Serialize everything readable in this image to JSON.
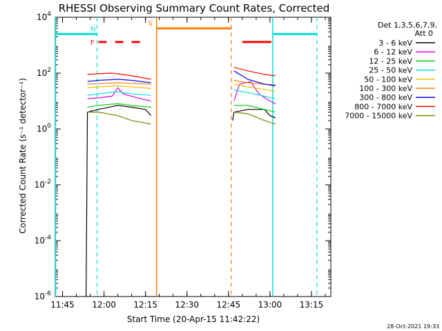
{
  "chart_data": {
    "type": "line",
    "title": "RHESSI Observing Summary Count Rates, Corrected",
    "xlabel": "Start Time (20-Apr-15 11:42:22)",
    "ylabel": "Corrected Count Rate (s⁻¹ detector⁻¹)",
    "timestamp": "28-Oct-2021 19:33",
    "y_scale": "log",
    "ylim": [
      1e-06,
      10000.0
    ],
    "xlim": [
      "11:42:22",
      "13:22"
    ],
    "x_ticks": [
      "11:45",
      "12:00",
      "12:15",
      "12:30",
      "12:45",
      "13:00",
      "13:15"
    ],
    "y_ticks": [
      {
        "mant": "10",
        "exp": "-6"
      },
      {
        "mant": "10",
        "exp": "-4"
      },
      {
        "mant": "10",
        "exp": "-2"
      },
      {
        "mant": "10",
        "exp": "0"
      },
      {
        "mant": "10",
        "exp": "2"
      },
      {
        "mant": "10",
        "exp": "4"
      }
    ],
    "legend_title": "Det 1,3,5,6,7,9,",
    "legend_subtitle": "Att 0",
    "legend_position": "top-right",
    "series": [
      {
        "name": "3 - 6 keV",
        "color": "#000000",
        "seg1": [
          [
            "11:53:30",
            1e-06
          ],
          [
            "11:54:00",
            4
          ],
          [
            "11:58",
            5
          ],
          [
            "12:05",
            7
          ],
          [
            "12:10",
            6
          ],
          [
            "12:15",
            5
          ],
          [
            "12:17",
            3
          ]
        ],
        "seg2": [
          [
            "12:46:30",
            2
          ],
          [
            "12:47",
            4
          ],
          [
            "12:52",
            5
          ],
          [
            "12:58",
            5
          ],
          [
            "13:00",
            3
          ],
          [
            "13:02",
            2.5
          ]
        ]
      },
      {
        "name": "6 - 12 keV",
        "color": "#e000e0",
        "seg1": [
          [
            "11:54",
            12
          ],
          [
            "11:58",
            13
          ],
          [
            "12:03",
            15
          ],
          [
            "12:05",
            30
          ],
          [
            "12:07",
            18
          ],
          [
            "12:12",
            13
          ],
          [
            "12:17",
            10
          ]
        ],
        "seg2": [
          [
            "12:47",
            10
          ],
          [
            "12:49",
            40
          ],
          [
            "12:53",
            50
          ],
          [
            "12:56",
            18
          ],
          [
            "13:00",
            10
          ],
          [
            "13:02",
            8
          ]
        ]
      },
      {
        "name": "12 - 25 keV",
        "color": "#00d000",
        "seg1": [
          [
            "11:54",
            6
          ],
          [
            "11:58",
            7
          ],
          [
            "12:05",
            8
          ],
          [
            "12:10",
            7
          ],
          [
            "12:17",
            6
          ]
        ],
        "seg2": [
          [
            "12:47",
            7
          ],
          [
            "12:52",
            7
          ],
          [
            "12:58",
            5
          ],
          [
            "13:02",
            4
          ]
        ]
      },
      {
        "name": "25 - 50 keV",
        "color": "#00e0e0",
        "seg1": [
          [
            "11:54",
            16
          ],
          [
            "11:58",
            18
          ],
          [
            "12:05",
            22
          ],
          [
            "12:10",
            18
          ],
          [
            "12:17",
            16
          ]
        ],
        "seg2": [
          [
            "12:47",
            25
          ],
          [
            "12:52",
            20
          ],
          [
            "12:58",
            15
          ],
          [
            "13:02",
            12
          ]
        ]
      },
      {
        "name": "50 - 100 keV",
        "color": "#e8c000",
        "seg1": [
          [
            "11:54",
            30
          ],
          [
            "11:58",
            32
          ],
          [
            "12:05",
            35
          ],
          [
            "12:10",
            32
          ],
          [
            "12:17",
            28
          ]
        ],
        "seg2": [
          [
            "12:47",
            40
          ],
          [
            "12:52",
            32
          ],
          [
            "12:58",
            26
          ],
          [
            "13:02",
            22
          ]
        ]
      },
      {
        "name": "100 - 300 keV",
        "color": "#ff7f00",
        "seg1": [
          [
            "11:54",
            40
          ],
          [
            "11:58",
            42
          ],
          [
            "12:05",
            45
          ],
          [
            "12:10",
            43
          ],
          [
            "12:17",
            40
          ]
        ],
        "seg2": [
          [
            "12:47",
            55
          ],
          [
            "12:52",
            45
          ],
          [
            "12:58",
            40
          ],
          [
            "13:02",
            38
          ]
        ]
      },
      {
        "name": "300 - 800 keV",
        "color": "#0000ff",
        "seg1": [
          [
            "11:54",
            50
          ],
          [
            "11:58",
            55
          ],
          [
            "12:05",
            60
          ],
          [
            "12:10",
            55
          ],
          [
            "12:17",
            45
          ]
        ],
        "seg2": [
          [
            "12:47",
            120
          ],
          [
            "12:52",
            60
          ],
          [
            "12:58",
            40
          ],
          [
            "13:02",
            35
          ]
        ]
      },
      {
        "name": "800 - 7000 keV",
        "color": "#ff0000",
        "seg1": [
          [
            "11:54",
            90
          ],
          [
            "11:58",
            95
          ],
          [
            "12:03",
            100
          ],
          [
            "12:10",
            80
          ],
          [
            "12:17",
            60
          ]
        ],
        "seg2": [
          [
            "12:47",
            160
          ],
          [
            "12:52",
            120
          ],
          [
            "12:58",
            90
          ],
          [
            "13:02",
            80
          ]
        ]
      },
      {
        "name": "7000 - 15000 keV",
        "color": "#808000",
        "seg1": [
          [
            "11:54",
            4
          ],
          [
            "11:58",
            4
          ],
          [
            "12:05",
            3
          ],
          [
            "12:10",
            2
          ],
          [
            "12:17",
            1.5
          ]
        ],
        "seg2": [
          [
            "12:47",
            4
          ],
          [
            "12:52",
            3.5
          ],
          [
            "12:58",
            2
          ],
          [
            "13:02",
            1.5
          ]
        ]
      }
    ],
    "flags": [
      {
        "label": "",
        "color": "#00e0e0",
        "y": 2500,
        "start": "11:42:22",
        "end": "11:57:30",
        "vline": "11:42:30",
        "vline_end": "11:57:30",
        "dash_end": true
      },
      {
        "label": "N",
        "color": "#00e0e0",
        "y": null,
        "start": "11:58:30",
        "end": "11:58:30"
      },
      {
        "label": "F",
        "color": "#ff0000",
        "y": 1300,
        "start": "11:58:00",
        "end": "12:13:00",
        "dashed": true
      },
      {
        "label": "S",
        "color": "#ff7f00",
        "y": 4000,
        "start": "12:19:00",
        "end": "12:46:00",
        "vline": "12:19:00",
        "vline_end": "12:46:00",
        "dash_end": true
      },
      {
        "label": "",
        "color": "#ff0000",
        "y": 1300,
        "start": "12:50:00",
        "end": "13:00:30"
      },
      {
        "label": "",
        "color": "#00e0e0",
        "y": 2500,
        "start": "13:01:00",
        "end": "13:17:00",
        "vline": "13:01:00",
        "vline_end": "13:17:00",
        "dash_end": true
      }
    ]
  }
}
